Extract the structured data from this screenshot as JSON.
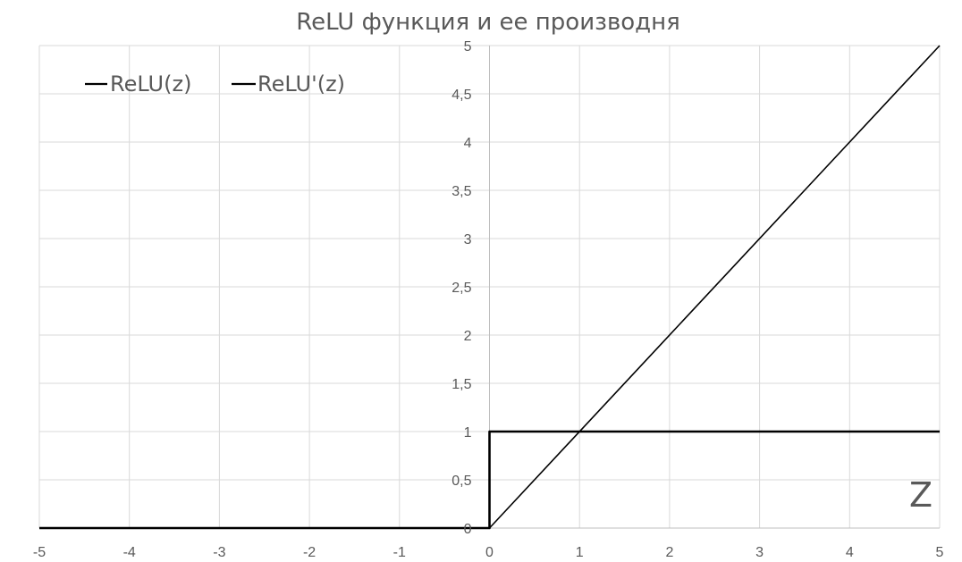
{
  "chart_data": {
    "type": "line",
    "title": "ReLU функция и ее производня",
    "xlabel": "",
    "ylabel": "",
    "xlim": [
      -5,
      5
    ],
    "ylim": [
      0,
      5
    ],
    "grid": true,
    "legend_position": "top-left",
    "annotation": "Z",
    "x_ticks": [
      "-5",
      "-4",
      "-3",
      "-2",
      "-1",
      "0",
      "1",
      "2",
      "3",
      "4",
      "5"
    ],
    "y_ticks": [
      "0",
      "0,5",
      "1",
      "1,5",
      "2",
      "2,5",
      "3",
      "3,5",
      "4",
      "4,5",
      "5"
    ],
    "series": [
      {
        "name": "ReLU(z)",
        "color": "#000000",
        "x": [
          -5,
          0,
          5
        ],
        "y": [
          0,
          0,
          5
        ]
      },
      {
        "name": "ReLU'(z)",
        "color": "#000000",
        "x": [
          -5,
          0,
          0,
          5
        ],
        "y": [
          0,
          0,
          1,
          1
        ]
      }
    ]
  }
}
